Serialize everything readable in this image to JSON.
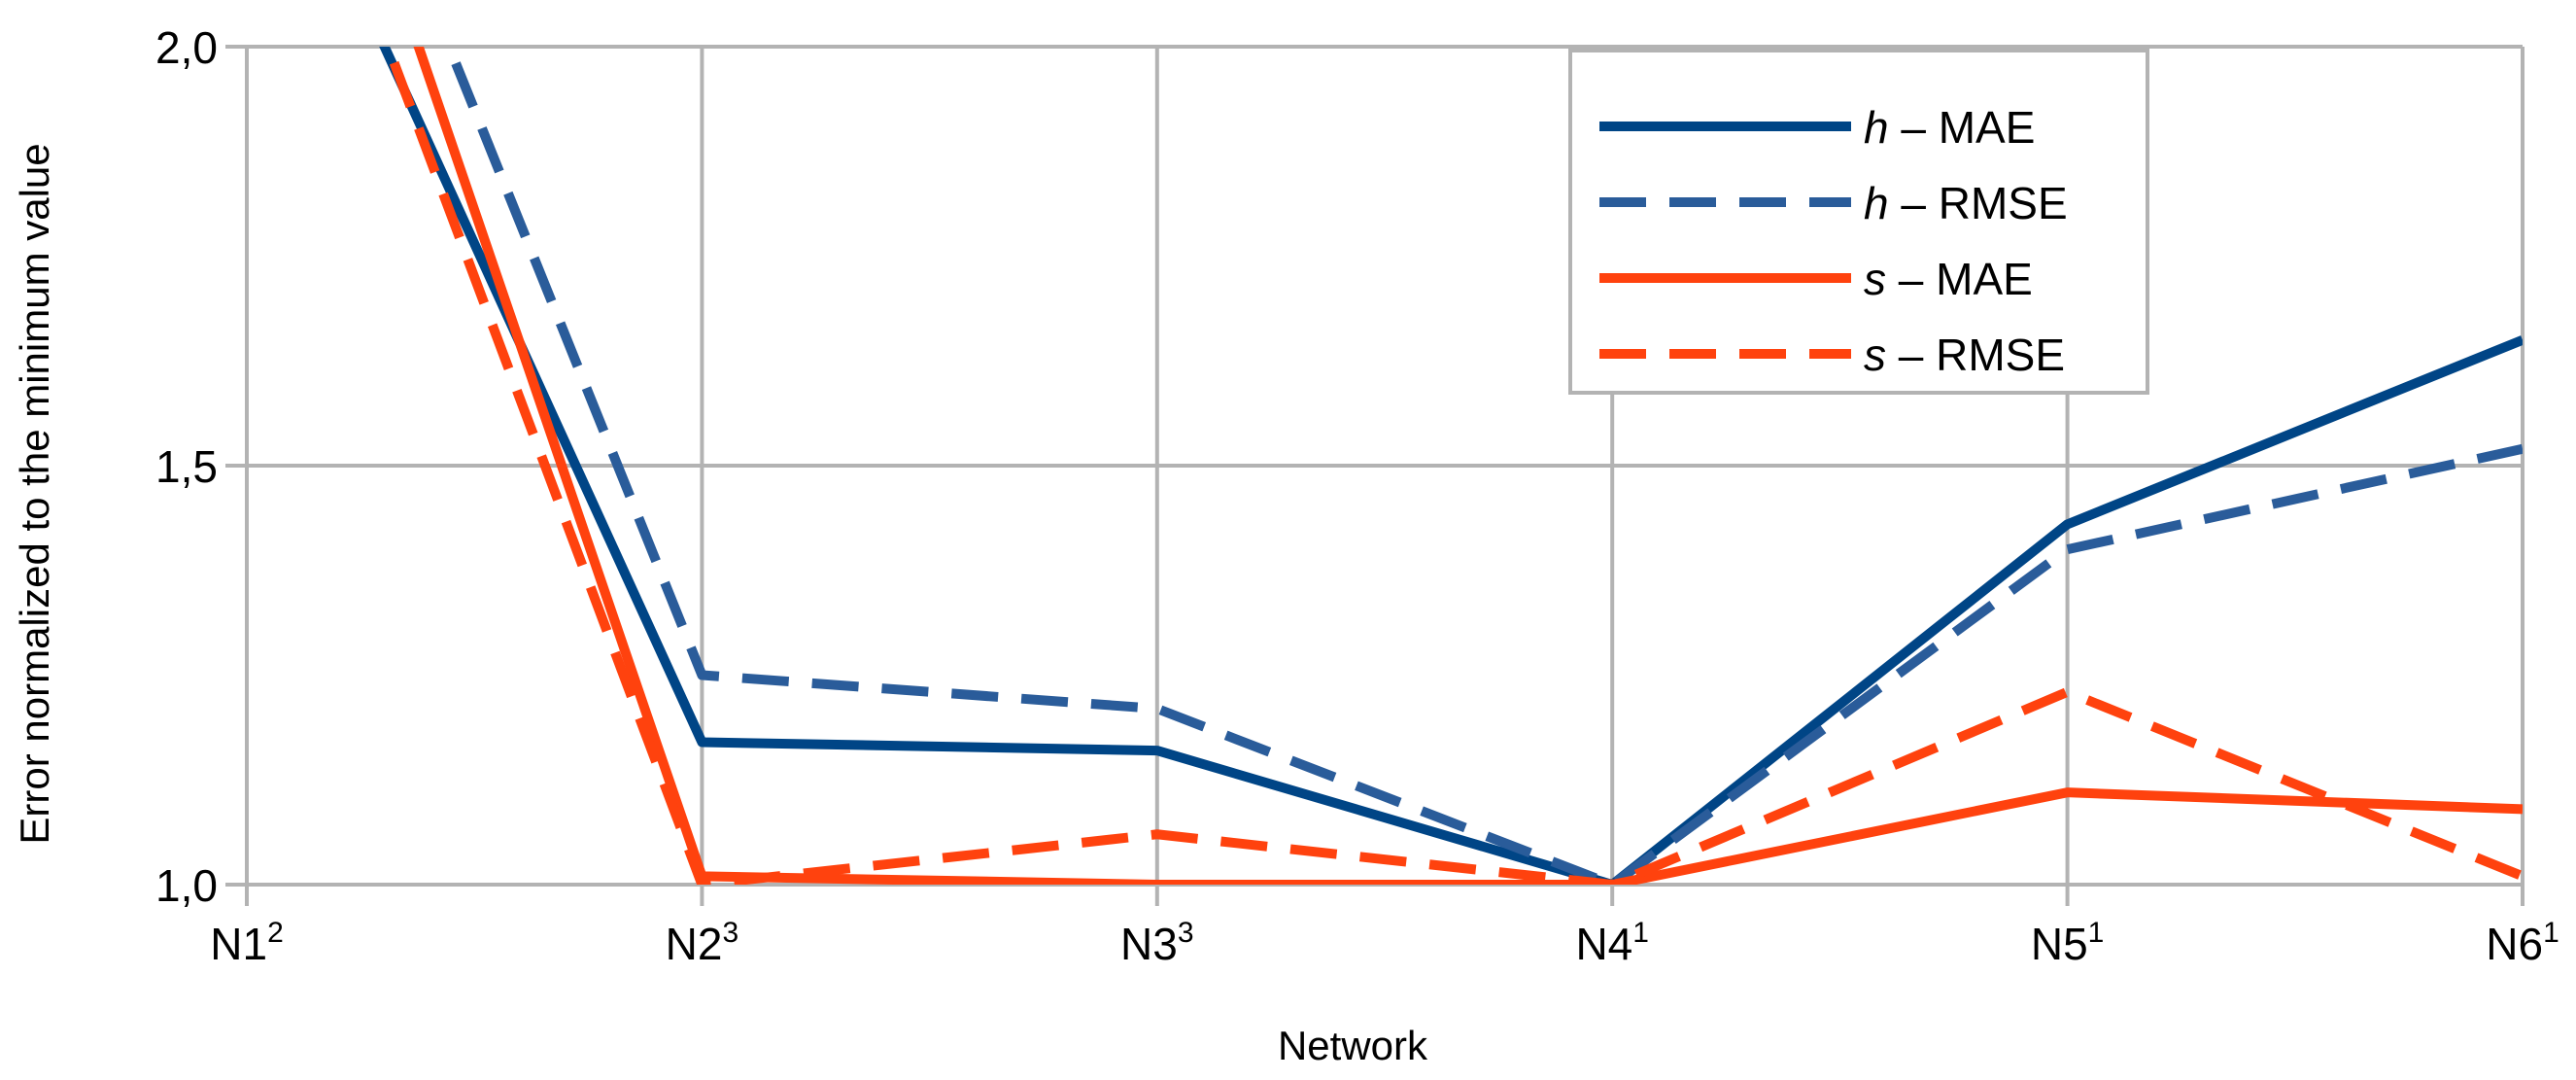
{
  "chart_data": {
    "type": "line",
    "xlabel": "Network",
    "ylabel": "Error normalized to the minimum value",
    "categories": [
      {
        "base": "N1",
        "sup": "2"
      },
      {
        "base": "N2",
        "sup": "3"
      },
      {
        "base": "N3",
        "sup": "3"
      },
      {
        "base": "N4",
        "sup": "1"
      },
      {
        "base": "N5",
        "sup": "1"
      },
      {
        "base": "N6",
        "sup": "1"
      }
    ],
    "ylim": [
      1.0,
      2.0
    ],
    "yticks": [
      1.0,
      1.5,
      2.0
    ],
    "ytick_labels": [
      "1,0",
      "1,5",
      "2,0"
    ],
    "grid": true,
    "legend_position": "top-right",
    "series": [
      {
        "name": "h – MAE",
        "italic": "h",
        "rest": " – MAE",
        "color": "#004586",
        "dashed": false,
        "values": [
          2.36,
          1.17,
          1.16,
          1.0,
          1.43,
          1.65
        ]
      },
      {
        "name": "h – RMSE",
        "italic": "h",
        "rest": " – RMSE",
        "color": "#2a5c9a",
        "dashed": true,
        "values": [
          2.6,
          1.25,
          1.21,
          1.0,
          1.4,
          1.52
        ]
      },
      {
        "name": "s – MAE",
        "italic": "s",
        "rest": " – MAE",
        "color": "#ff420e",
        "dashed": false,
        "values": [
          2.6,
          1.01,
          1.0,
          1.0,
          1.11,
          1.09
        ]
      },
      {
        "name": "s – RMSE",
        "italic": "s",
        "rest": " – RMSE",
        "color": "#ff420e",
        "dashed": true,
        "values": [
          2.45,
          1.0,
          1.06,
          1.0,
          1.23,
          1.01
        ]
      }
    ]
  }
}
